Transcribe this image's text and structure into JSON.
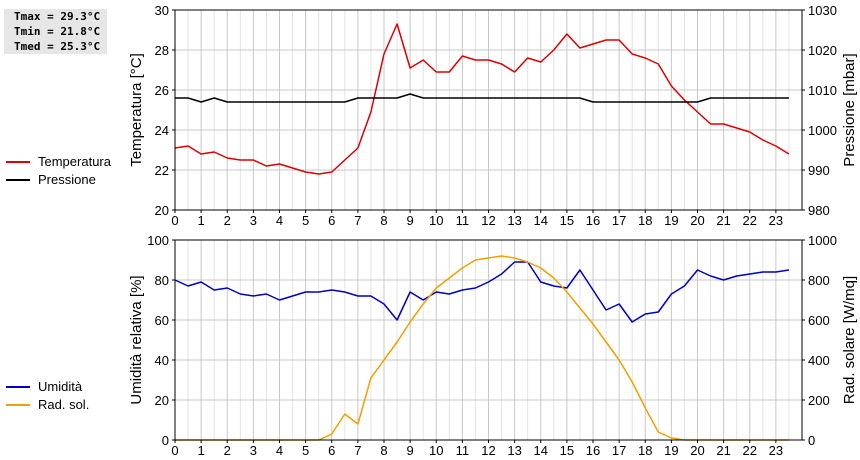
{
  "stats": {
    "lines": [
      "Tmax = 29.3°C",
      "Tmin = 21.8°C",
      "Tmed = 25.3°C"
    ]
  },
  "legend_top": [
    {
      "label": "Temperatura",
      "color": "#dd0000"
    },
    {
      "label": "Pressione",
      "color": "#000000"
    }
  ],
  "legend_bottom": [
    {
      "label": "Umidità",
      "color": "#0000c0"
    },
    {
      "label": "Rad. sol.",
      "color": "#f0a000"
    }
  ],
  "chart_data": [
    {
      "type": "line",
      "ylabel": "Temperatura [°C]",
      "y2label": "Pressione [mbar]",
      "ylim": [
        20,
        30
      ],
      "y2lim": [
        980,
        1030
      ],
      "yticks": [
        20,
        22,
        24,
        26,
        28,
        30
      ],
      "y2ticks": [
        980,
        990,
        1000,
        1010,
        1020,
        1030
      ],
      "xlim": [
        0,
        24
      ],
      "xticks": [
        "0",
        "1",
        "2",
        "3",
        "4",
        "5",
        "6",
        "7",
        "8",
        "9",
        "10",
        "11",
        "12",
        "13",
        "14",
        "15",
        "16",
        "17",
        "18",
        "19",
        "20",
        "21",
        "22",
        "23"
      ],
      "grid": true,
      "series": [
        {
          "name": "Temperatura",
          "color": "#dd0000",
          "axis": "left",
          "x": [
            0,
            0.5,
            1,
            1.5,
            2,
            2.5,
            3,
            3.5,
            4,
            4.5,
            5,
            5.5,
            6,
            6.5,
            7,
            7.5,
            8,
            8.5,
            9,
            9.5,
            10,
            10.5,
            11,
            11.5,
            12,
            12.5,
            13,
            13.5,
            14,
            14.5,
            15,
            15.5,
            16,
            16.5,
            17,
            17.5,
            18,
            18.5,
            19,
            19.5,
            20,
            20.5,
            21,
            21.5,
            22,
            22.5,
            23,
            23.5
          ],
          "y": [
            23.1,
            23.2,
            22.8,
            22.9,
            22.6,
            22.5,
            22.5,
            22.2,
            22.3,
            22.1,
            21.9,
            21.8,
            21.9,
            22.5,
            23.1,
            24.9,
            27.8,
            29.3,
            27.1,
            27.5,
            26.9,
            26.9,
            27.7,
            27.5,
            27.5,
            27.3,
            26.9,
            27.6,
            27.4,
            28.0,
            28.8,
            28.1,
            28.3,
            28.5,
            28.5,
            27.8,
            27.6,
            27.3,
            26.2,
            25.5,
            24.9,
            24.3,
            24.3,
            24.1,
            23.9,
            23.5,
            23.2,
            22.8
          ]
        },
        {
          "name": "Pressione",
          "color": "#000000",
          "axis": "right",
          "x": [
            0,
            0.5,
            1,
            1.5,
            2,
            2.5,
            3,
            3.5,
            4,
            4.5,
            5,
            5.5,
            6,
            6.5,
            7,
            7.5,
            8,
            8.5,
            9,
            9.5,
            10,
            10.5,
            11,
            11.5,
            12,
            12.5,
            13,
            13.5,
            14,
            14.5,
            15,
            15.5,
            16,
            16.5,
            17,
            17.5,
            18,
            18.5,
            19,
            19.5,
            20,
            20.5,
            21,
            21.5,
            22,
            22.5,
            23,
            23.5
          ],
          "y": [
            1008,
            1008,
            1007,
            1008,
            1007,
            1007,
            1007,
            1007,
            1007,
            1007,
            1007,
            1007,
            1007,
            1007,
            1008,
            1008,
            1008,
            1008,
            1009,
            1008,
            1008,
            1008,
            1008,
            1008,
            1008,
            1008,
            1008,
            1008,
            1008,
            1008,
            1008,
            1008,
            1007,
            1007,
            1007,
            1007,
            1007,
            1007,
            1007,
            1007,
            1007,
            1008,
            1008,
            1008,
            1008,
            1008,
            1008,
            1008
          ]
        }
      ]
    },
    {
      "type": "line",
      "ylabel": "Umidità relativa [%]",
      "y2label": "Rad. solare [W/mq]",
      "ylim": [
        0,
        100
      ],
      "y2lim": [
        0,
        1000
      ],
      "yticks": [
        0,
        20,
        40,
        60,
        80,
        100
      ],
      "y2ticks": [
        0,
        200,
        400,
        600,
        800,
        1000
      ],
      "xlim": [
        0,
        24
      ],
      "xticks": [
        "0",
        "1",
        "2",
        "3",
        "4",
        "5",
        "6",
        "7",
        "8",
        "9",
        "10",
        "11",
        "12",
        "13",
        "14",
        "15",
        "16",
        "17",
        "18",
        "19",
        "20",
        "21",
        "22",
        "23"
      ],
      "grid": true,
      "series": [
        {
          "name": "Umidità",
          "color": "#0000c0",
          "axis": "left",
          "x": [
            0,
            0.5,
            1,
            1.5,
            2,
            2.5,
            3,
            3.5,
            4,
            4.5,
            5,
            5.5,
            6,
            6.5,
            7,
            7.5,
            8,
            8.5,
            9,
            9.5,
            10,
            10.5,
            11,
            11.5,
            12,
            12.5,
            13,
            13.5,
            14,
            14.5,
            15,
            15.5,
            16,
            16.5,
            17,
            17.5,
            18,
            18.5,
            19,
            19.5,
            20,
            20.5,
            21,
            21.5,
            22,
            22.5,
            23,
            23.5
          ],
          "y": [
            80,
            77,
            79,
            75,
            76,
            73,
            72,
            73,
            70,
            72,
            74,
            74,
            75,
            74,
            72,
            72,
            68,
            60,
            74,
            70,
            74,
            73,
            75,
            76,
            79,
            83,
            89,
            89,
            79,
            77,
            76,
            85,
            75,
            65,
            68,
            59,
            63,
            64,
            73,
            77,
            85,
            82,
            80,
            82,
            83,
            84,
            84,
            85
          ]
        },
        {
          "name": "Rad. sol.",
          "color": "#f0a000",
          "axis": "right",
          "x": [
            0,
            0.5,
            1,
            1.5,
            2,
            2.5,
            3,
            3.5,
            4,
            4.5,
            5,
            5.5,
            6,
            6.5,
            7,
            7.5,
            8,
            8.5,
            9,
            9.5,
            10,
            10.5,
            11,
            11.5,
            12,
            12.5,
            13,
            13.5,
            14,
            14.5,
            15,
            15.5,
            16,
            16.5,
            17,
            17.5,
            18,
            18.5,
            19,
            19.5,
            20,
            20.5,
            21,
            21.5,
            22,
            22.5,
            23,
            23.5
          ],
          "y": [
            0,
            0,
            0,
            0,
            0,
            0,
            0,
            0,
            0,
            0,
            0,
            0,
            30,
            130,
            80,
            310,
            400,
            490,
            590,
            680,
            760,
            810,
            860,
            900,
            910,
            920,
            910,
            890,
            860,
            810,
            740,
            660,
            580,
            490,
            400,
            290,
            160,
            40,
            10,
            0,
            0,
            0,
            0,
            0,
            0,
            0,
            0,
            0
          ]
        }
      ]
    }
  ]
}
